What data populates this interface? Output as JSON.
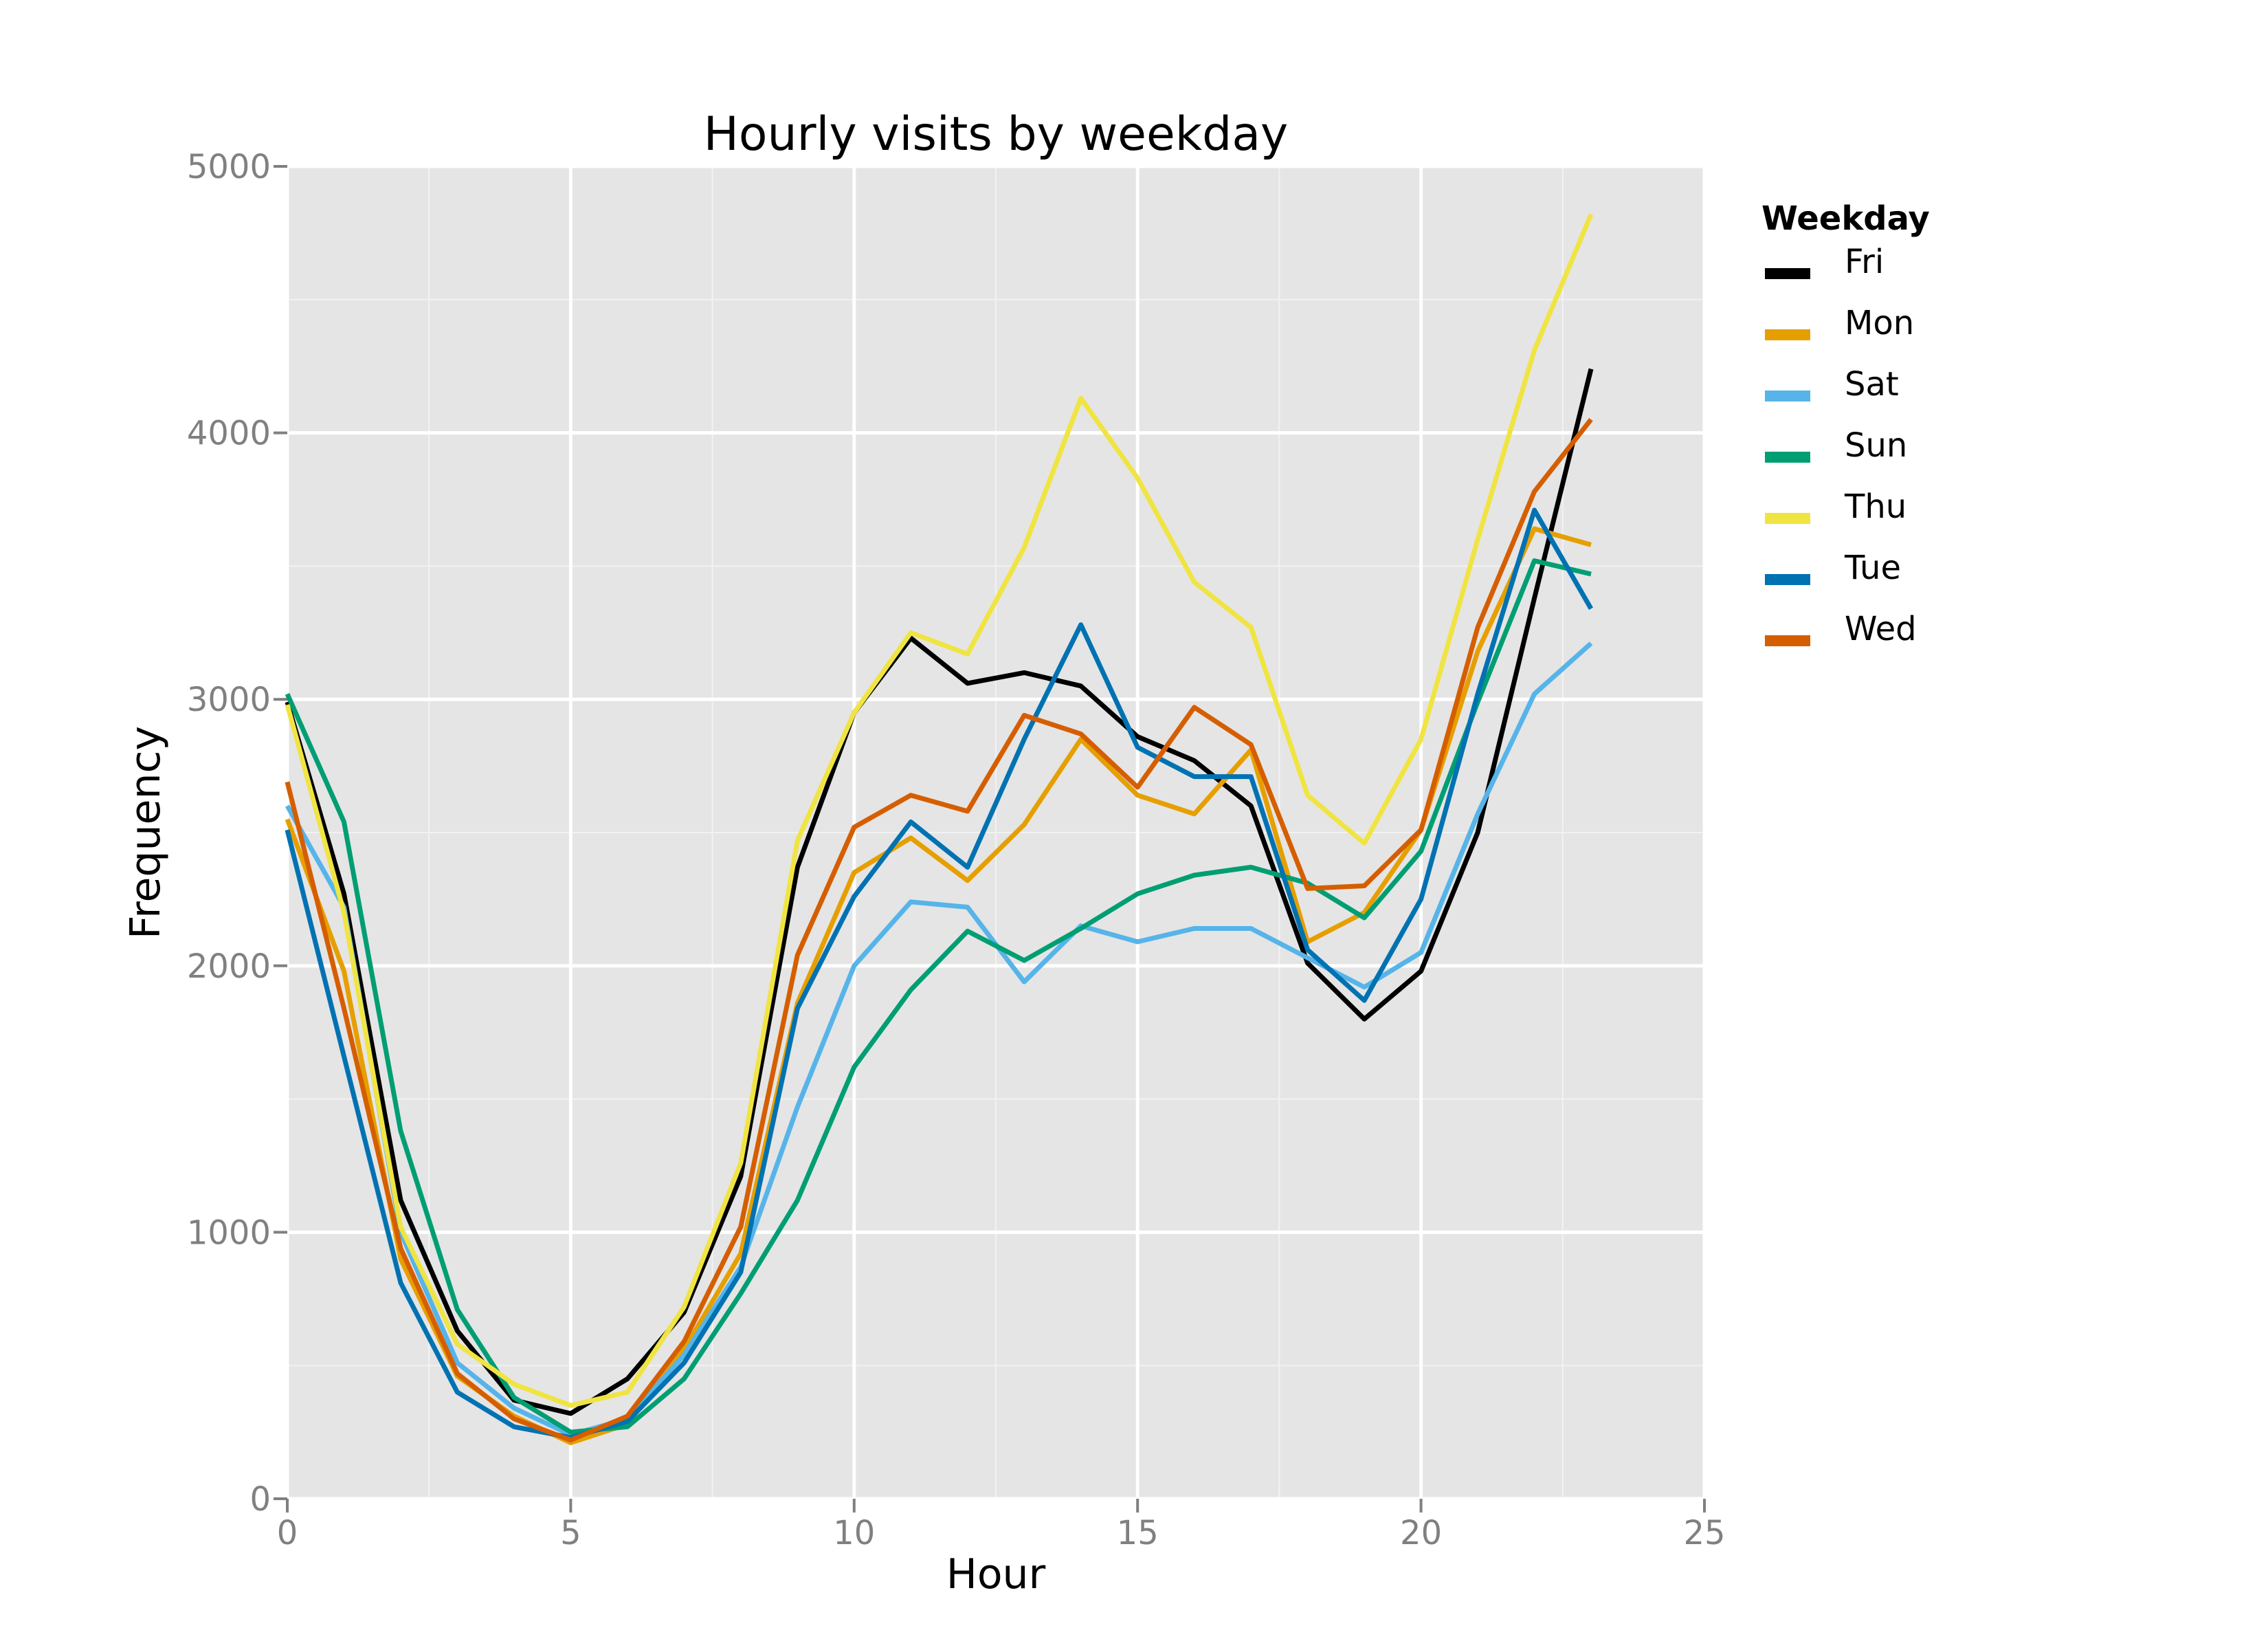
{
  "chart_data": {
    "type": "line",
    "title": "Hourly visits by weekday",
    "xlabel": "Hour",
    "ylabel": "Frequency",
    "xlim": [
      0,
      25
    ],
    "ylim": [
      0,
      5000
    ],
    "xticks": [
      0,
      5,
      10,
      15,
      20,
      25
    ],
    "yticks": [
      0,
      1000,
      2000,
      3000,
      4000,
      5000
    ],
    "xtick_labels": [
      "0",
      "5",
      "10",
      "15",
      "20",
      "25"
    ],
    "ytick_labels": [
      "0",
      "1000",
      "2000",
      "3000",
      "4000",
      "5000"
    ],
    "grid": true,
    "legend_title": "Weekday",
    "legend_position": "right",
    "x": [
      0,
      1,
      2,
      3,
      4,
      5,
      6,
      7,
      8,
      9,
      10,
      11,
      12,
      13,
      14,
      15,
      16,
      17,
      18,
      19,
      20,
      21,
      22,
      23
    ],
    "series": [
      {
        "name": "Fri",
        "color": "#000000",
        "values": [
          2990,
          2270,
          1120,
          630,
          370,
          320,
          450,
          700,
          1210,
          2370,
          2950,
          3230,
          3060,
          3100,
          3050,
          2860,
          2770,
          2600,
          2010,
          1800,
          1980,
          2500,
          3380,
          4240
        ]
      },
      {
        "name": "Mon",
        "color": "#E69F00",
        "values": [
          2550,
          1980,
          900,
          460,
          310,
          210,
          280,
          560,
          920,
          1860,
          2350,
          2480,
          2320,
          2530,
          2850,
          2640,
          2570,
          2810,
          2090,
          2200,
          2510,
          3180,
          3640,
          3580
        ]
      },
      {
        "name": "Sat",
        "color": "#56B4E9",
        "values": [
          2600,
          2220,
          1000,
          510,
          340,
          240,
          300,
          540,
          870,
          1470,
          2000,
          2240,
          2220,
          1940,
          2150,
          2090,
          2140,
          2140,
          2030,
          1920,
          2050,
          2570,
          3020,
          3210
        ]
      },
      {
        "name": "Sun",
        "color": "#009E73",
        "values": [
          3020,
          2540,
          1380,
          710,
          380,
          250,
          270,
          450,
          770,
          1120,
          1620,
          1910,
          2130,
          2020,
          2140,
          2270,
          2340,
          2370,
          2310,
          2180,
          2430,
          2990,
          3520,
          3470
        ]
      },
      {
        "name": "Thu",
        "color": "#F0E442",
        "values": [
          2980,
          2200,
          1020,
          580,
          430,
          350,
          400,
          720,
          1260,
          2470,
          2950,
          3250,
          3170,
          3570,
          4130,
          3830,
          3440,
          3270,
          2640,
          2460,
          2850,
          3600,
          4310,
          4820
        ]
      },
      {
        "name": "Tue",
        "color": "#0072B2",
        "values": [
          2510,
          1660,
          810,
          400,
          270,
          230,
          290,
          510,
          850,
          1840,
          2260,
          2540,
          2370,
          2850,
          3280,
          2820,
          2710,
          2710,
          2060,
          1870,
          2250,
          3020,
          3710,
          3340
        ]
      },
      {
        "name": "Wed",
        "color": "#D55E00",
        "values": [
          2690,
          1840,
          940,
          470,
          300,
          220,
          310,
          590,
          1020,
          2040,
          2520,
          2640,
          2580,
          2940,
          2870,
          2670,
          2970,
          2830,
          2290,
          2300,
          2510,
          3270,
          3780,
          4050
        ]
      }
    ]
  }
}
